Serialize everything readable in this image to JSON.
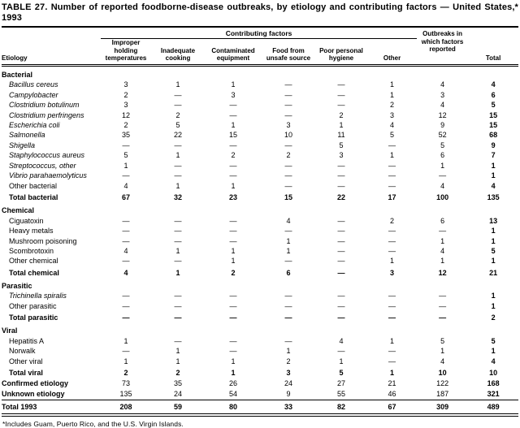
{
  "title": "TABLE 27. Number of reported foodborne-disease outbreaks, by etiology and contributing factors — United States,* 1993",
  "header": {
    "etiology": "Etiology",
    "spanner": "Contributing factors",
    "factors": [
      "Improper holding temperatures",
      "Inadequate cooking",
      "Contaminated equipment",
      "Food from unsafe source",
      "Poor personal hygiene",
      "Other"
    ],
    "outbreaks": "Outbreaks in which factors reported",
    "total": "Total"
  },
  "rows": [
    {
      "label": "Bacterial",
      "type": "section",
      "values": []
    },
    {
      "label": "Bacillus cereus",
      "type": "species",
      "values": [
        "3",
        "1",
        "1",
        "—",
        "—",
        "1",
        "4",
        "4"
      ]
    },
    {
      "label": "Campylobacter",
      "type": "species",
      "values": [
        "2",
        "—",
        "3",
        "—",
        "—",
        "1",
        "3",
        "6"
      ]
    },
    {
      "label": "Clostridium botulinum",
      "type": "species",
      "values": [
        "3",
        "—",
        "—",
        "—",
        "—",
        "2",
        "4",
        "5"
      ]
    },
    {
      "label": "Clostridium perfringens",
      "type": "species",
      "values": [
        "12",
        "2",
        "—",
        "—",
        "2",
        "3",
        "12",
        "15"
      ]
    },
    {
      "label": "Escherichia coli",
      "type": "species",
      "values": [
        "2",
        "5",
        "1",
        "3",
        "1",
        "4",
        "9",
        "15"
      ]
    },
    {
      "label": "Salmonella",
      "type": "species",
      "values": [
        "35",
        "22",
        "15",
        "10",
        "11",
        "5",
        "52",
        "68"
      ]
    },
    {
      "label": "Shigella",
      "type": "species",
      "values": [
        "—",
        "—",
        "—",
        "—",
        "5",
        "—",
        "5",
        "9"
      ]
    },
    {
      "label": "Staphylococcus aureus",
      "type": "species",
      "values": [
        "5",
        "1",
        "2",
        "2",
        "3",
        "1",
        "6",
        "7"
      ]
    },
    {
      "label": "Streptococcus, other",
      "type": "species",
      "values": [
        "1",
        "—",
        "—",
        "—",
        "—",
        "—",
        "1",
        "1"
      ]
    },
    {
      "label": "Vibrio parahaemolyticus",
      "type": "species",
      "values": [
        "—",
        "—",
        "—",
        "—",
        "—",
        "—",
        "—",
        "1"
      ]
    },
    {
      "label": "Other bacterial",
      "type": "item",
      "values": [
        "4",
        "1",
        "1",
        "—",
        "—",
        "—",
        "4",
        "4"
      ]
    },
    {
      "label": "Total bacterial",
      "type": "total",
      "values": [
        "67",
        "32",
        "23",
        "15",
        "22",
        "17",
        "100",
        "135"
      ]
    },
    {
      "label": "Chemical",
      "type": "section",
      "values": []
    },
    {
      "label": "Ciguatoxin",
      "type": "item",
      "values": [
        "—",
        "—",
        "—",
        "4",
        "—",
        "2",
        "6",
        "13"
      ]
    },
    {
      "label": "Heavy metals",
      "type": "item",
      "values": [
        "—",
        "—",
        "—",
        "—",
        "—",
        "—",
        "—",
        "1"
      ]
    },
    {
      "label": "Mushroom poisoning",
      "type": "item",
      "values": [
        "—",
        "—",
        "—",
        "1",
        "—",
        "—",
        "1",
        "1"
      ]
    },
    {
      "label": "Scombrotoxin",
      "type": "item",
      "values": [
        "4",
        "1",
        "1",
        "1",
        "—",
        "—",
        "4",
        "5"
      ]
    },
    {
      "label": "Other chemical",
      "type": "item",
      "values": [
        "—",
        "—",
        "1",
        "—",
        "—",
        "1",
        "1",
        "1"
      ]
    },
    {
      "label": "Total chemical",
      "type": "total",
      "values": [
        "4",
        "1",
        "2",
        "6",
        "—",
        "3",
        "12",
        "21"
      ]
    },
    {
      "label": "Parasitic",
      "type": "section",
      "values": []
    },
    {
      "label": "Trichinella spiralis",
      "type": "species",
      "values": [
        "—",
        "—",
        "—",
        "—",
        "—",
        "—",
        "—",
        "1"
      ]
    },
    {
      "label": "Other parasitic",
      "type": "item",
      "values": [
        "—",
        "—",
        "—",
        "—",
        "—",
        "—",
        "—",
        "1"
      ]
    },
    {
      "label": "Total parasitic",
      "type": "total",
      "values": [
        "—",
        "—",
        "—",
        "—",
        "—",
        "—",
        "—",
        "2"
      ]
    },
    {
      "label": "Viral",
      "type": "section",
      "values": []
    },
    {
      "label": "Hepatitis A",
      "type": "item",
      "values": [
        "1",
        "—",
        "—",
        "—",
        "4",
        "1",
        "5",
        "5"
      ]
    },
    {
      "label": "Norwalk",
      "type": "item",
      "values": [
        "—",
        "1",
        "—",
        "1",
        "—",
        "—",
        "1",
        "1"
      ]
    },
    {
      "label": "Other viral",
      "type": "item",
      "values": [
        "1",
        "1",
        "1",
        "2",
        "1",
        "—",
        "4",
        "4"
      ]
    },
    {
      "label": "Total viral",
      "type": "total",
      "values": [
        "2",
        "2",
        "1",
        "3",
        "5",
        "1",
        "10",
        "10"
      ]
    },
    {
      "label": "Confirmed etiology",
      "type": "summary",
      "values": [
        "73",
        "35",
        "26",
        "24",
        "27",
        "21",
        "122",
        "168"
      ]
    },
    {
      "label": "Unknown etiology",
      "type": "summary",
      "values": [
        "135",
        "24",
        "54",
        "9",
        "55",
        "46",
        "187",
        "321"
      ]
    },
    {
      "label": "Total 1993",
      "type": "grand",
      "values": [
        "208",
        "59",
        "80",
        "33",
        "82",
        "67",
        "309",
        "489"
      ]
    }
  ],
  "footnote": "*Includes Guam, Puerto Rico, and the U.S. Virgin Islands.",
  "colors": {
    "text": "#000000",
    "background": "#ffffff"
  }
}
